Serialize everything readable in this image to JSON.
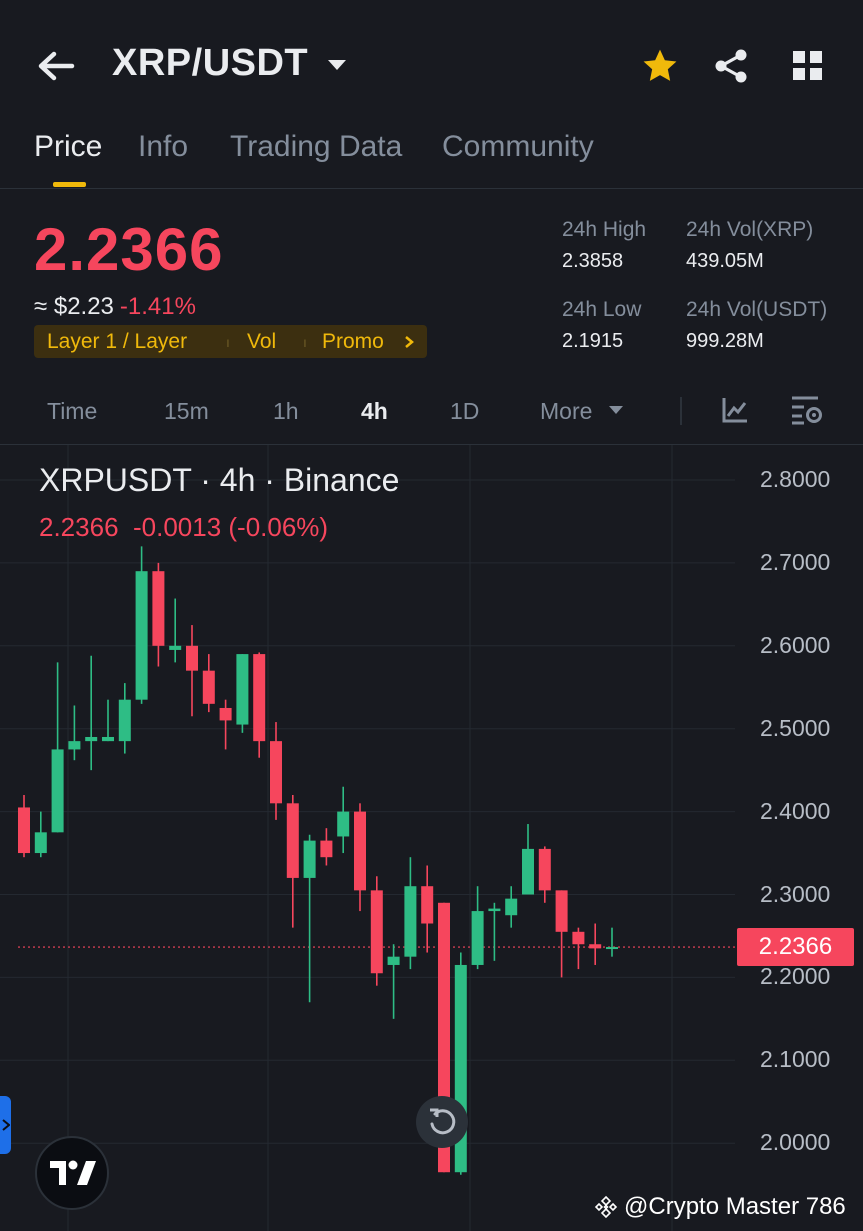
{
  "header": {
    "back_icon": "arrow-left-icon",
    "pair": "XRP/USDT",
    "dropdown_icon": "caret-down-icon",
    "favorite_icon": "star-icon",
    "share_icon": "share-icon",
    "grid_icon": "grid-icon"
  },
  "tabs": [
    {
      "label": "Price",
      "active": true
    },
    {
      "label": "Info"
    },
    {
      "label": "Trading Data"
    },
    {
      "label": "Community"
    }
  ],
  "price": {
    "last": "2.2366",
    "approx_usd": "≈ $2.23",
    "change_pct": "-1.41%",
    "tags": [
      "Layer 1 / Layer",
      "Vol",
      "Promo"
    ],
    "tags_more_icon": "chevron-right-icon"
  },
  "stats": {
    "high_label": "24h High",
    "high_value": "2.3858",
    "vol_xrp_label": "24h Vol(XRP)",
    "vol_xrp_value": "439.05M",
    "low_label": "24h Low",
    "low_value": "2.1915",
    "vol_usdt_label": "24h Vol(USDT)",
    "vol_usdt_value": "999.28M"
  },
  "intervals": [
    "Time",
    "15m",
    "1h",
    "4h",
    "1D",
    "More"
  ],
  "active_interval": "4h",
  "chart_header": {
    "title": "XRPUSDT · 4h · Binance",
    "ohlc_line": "2.2366  -0.0013 (-0.06%)"
  },
  "current_price_tag": "2.2366",
  "watermark": "@Crypto Master 786",
  "colors": {
    "up": "#2ebd85",
    "down": "#f6465d",
    "accent": "#f0b90b",
    "bg": "#181a20"
  },
  "chart_data": {
    "type": "candlestick",
    "title": "XRPUSDT · 4h · Binance",
    "ylim": [
      1.95,
      2.82
    ],
    "yticks": [
      "2.8000",
      "2.7000",
      "2.6000",
      "2.5000",
      "2.4000",
      "2.3000",
      "2.2000",
      "2.1000",
      "2.0000"
    ],
    "current_price": 2.2366,
    "grid": true,
    "candles": [
      {
        "o": 2.405,
        "h": 2.42,
        "l": 2.345,
        "c": 2.35
      },
      {
        "o": 2.35,
        "h": 2.4,
        "l": 2.345,
        "c": 2.375
      },
      {
        "o": 2.375,
        "h": 2.58,
        "l": 2.375,
        "c": 2.475
      },
      {
        "o": 2.475,
        "h": 2.528,
        "l": 2.462,
        "c": 2.485
      },
      {
        "o": 2.485,
        "h": 2.588,
        "l": 2.45,
        "c": 2.49
      },
      {
        "o": 2.485,
        "h": 2.535,
        "l": 2.485,
        "c": 2.49
      },
      {
        "o": 2.485,
        "h": 2.555,
        "l": 2.47,
        "c": 2.535
      },
      {
        "o": 2.535,
        "h": 2.72,
        "l": 2.53,
        "c": 2.69
      },
      {
        "o": 2.69,
        "h": 2.7,
        "l": 2.575,
        "c": 2.6
      },
      {
        "o": 2.595,
        "h": 2.657,
        "l": 2.58,
        "c": 2.6
      },
      {
        "o": 2.6,
        "h": 2.625,
        "l": 2.515,
        "c": 2.57
      },
      {
        "o": 2.57,
        "h": 2.59,
        "l": 2.52,
        "c": 2.53
      },
      {
        "o": 2.525,
        "h": 2.535,
        "l": 2.475,
        "c": 2.51
      },
      {
        "o": 2.505,
        "h": 2.59,
        "l": 2.495,
        "c": 2.59
      },
      {
        "o": 2.59,
        "h": 2.592,
        "l": 2.465,
        "c": 2.485
      },
      {
        "o": 2.485,
        "h": 2.508,
        "l": 2.39,
        "c": 2.41
      },
      {
        "o": 2.41,
        "h": 2.42,
        "l": 2.26,
        "c": 2.32
      },
      {
        "o": 2.32,
        "h": 2.372,
        "l": 2.17,
        "c": 2.365
      },
      {
        "o": 2.365,
        "h": 2.38,
        "l": 2.335,
        "c": 2.345
      },
      {
        "o": 2.37,
        "h": 2.43,
        "l": 2.35,
        "c": 2.4
      },
      {
        "o": 2.4,
        "h": 2.41,
        "l": 2.28,
        "c": 2.305
      },
      {
        "o": 2.305,
        "h": 2.322,
        "l": 2.19,
        "c": 2.205
      },
      {
        "o": 2.215,
        "h": 2.24,
        "l": 2.15,
        "c": 2.225
      },
      {
        "o": 2.225,
        "h": 2.345,
        "l": 2.21,
        "c": 2.31
      },
      {
        "o": 2.31,
        "h": 2.335,
        "l": 2.23,
        "c": 2.265
      },
      {
        "o": 2.29,
        "h": 2.29,
        "l": 1.965,
        "c": 1.965
      },
      {
        "o": 1.965,
        "h": 2.23,
        "l": 1.962,
        "c": 2.215
      },
      {
        "o": 2.215,
        "h": 2.31,
        "l": 2.21,
        "c": 2.28
      },
      {
        "o": 2.28,
        "h": 2.29,
        "l": 2.22,
        "c": 2.283
      },
      {
        "o": 2.275,
        "h": 2.31,
        "l": 2.26,
        "c": 2.295
      },
      {
        "o": 2.3,
        "h": 2.385,
        "l": 2.3,
        "c": 2.355
      },
      {
        "o": 2.355,
        "h": 2.358,
        "l": 2.29,
        "c": 2.305
      },
      {
        "o": 2.305,
        "h": 2.305,
        "l": 2.2,
        "c": 2.255
      },
      {
        "o": 2.255,
        "h": 2.26,
        "l": 2.21,
        "c": 2.24
      },
      {
        "o": 2.24,
        "h": 2.265,
        "l": 2.215,
        "c": 2.235
      },
      {
        "o": 2.2366,
        "h": 2.26,
        "l": 2.225,
        "c": 2.2366
      }
    ]
  }
}
